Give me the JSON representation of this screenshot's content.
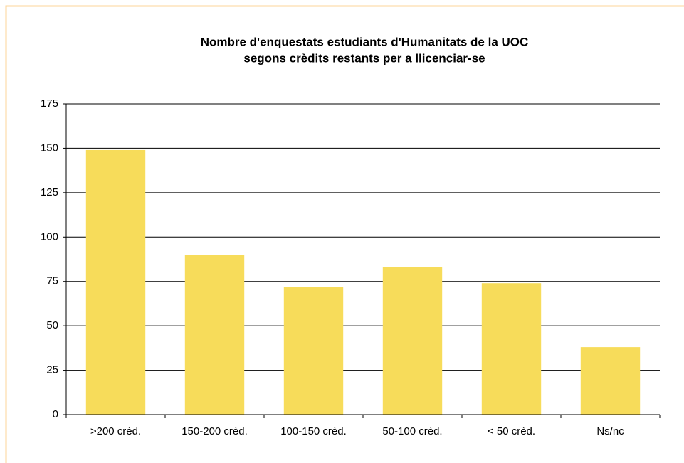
{
  "chart_data": {
    "type": "bar",
    "title": [
      "Nombre d'enquestats estudiants d'Humanitats de la UOC",
      "segons crèdits restants per a llicenciar-se"
    ],
    "categories": [
      ">200 crèd.",
      "150-200 crèd.",
      "100-150 crèd.",
      "50-100 crèd.",
      "< 50 crèd.",
      "Ns/nc"
    ],
    "values": [
      149,
      90,
      72,
      83,
      74,
      38
    ],
    "color": "#f7dc5a",
    "ylim": [
      0,
      175
    ],
    "yticks": [
      0,
      25,
      50,
      75,
      100,
      125,
      150,
      175
    ],
    "grid": true
  }
}
